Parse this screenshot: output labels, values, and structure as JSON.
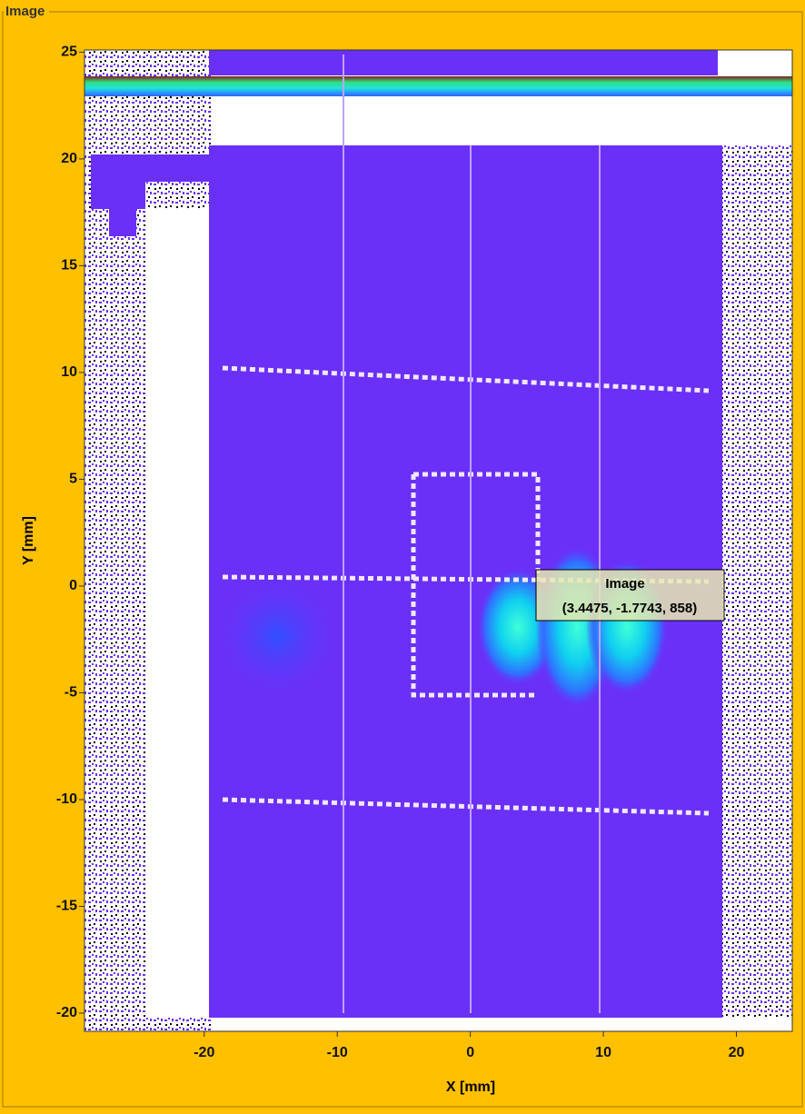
{
  "panel_title": "Image",
  "chart_data": {
    "type": "image",
    "title": "Image",
    "x_label": "X [mm]",
    "y_label": "Y [mm]",
    "xlim": [
      -29.0,
      24.2
    ],
    "ylim": [
      -20.85,
      25.1
    ],
    "xticks": [
      -20,
      -10,
      0,
      10,
      20
    ],
    "yticks": [
      -20,
      -15,
      -10,
      -5,
      0,
      5,
      10,
      15,
      20,
      25
    ],
    "tooltip": {
      "title": "Image",
      "text": "(3.4475, -1.7743, 858)"
    }
  }
}
